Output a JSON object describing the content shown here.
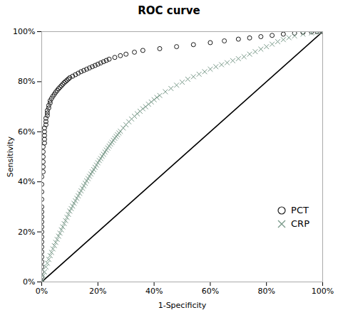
{
  "chart_data": {
    "type": "scatter",
    "title": "ROC curve",
    "xlabel": "1-Specificity",
    "ylabel": "Sensitivity",
    "xlim": [
      0,
      1
    ],
    "ylim": [
      0,
      1
    ],
    "xticks": [
      {
        "value": 0,
        "label": "0%"
      },
      {
        "value": 0.2,
        "label": "20%"
      },
      {
        "value": 0.4,
        "label": "40%"
      },
      {
        "value": 0.6,
        "label": "60%"
      },
      {
        "value": 0.8,
        "label": "80%"
      },
      {
        "value": 1.0,
        "label": "100%"
      }
    ],
    "yticks": [
      {
        "value": 0,
        "label": "0%"
      },
      {
        "value": 0.2,
        "label": "20%"
      },
      {
        "value": 0.4,
        "label": "40%"
      },
      {
        "value": 0.6,
        "label": "60%"
      },
      {
        "value": 0.8,
        "label": "80%"
      },
      {
        "value": 1.0,
        "label": "100%"
      }
    ],
    "grid": false,
    "legend": "lower right",
    "series": [
      {
        "name": "PCT",
        "color": "#1a1a1a",
        "marker": "circle",
        "x": [
          0.0,
          0.0,
          0.0,
          0.0,
          0.0,
          0.0,
          0.0,
          0.0,
          0.0,
          0.0,
          0.0,
          0.0,
          0.0,
          0.0,
          0.0,
          0.0,
          0.0,
          0.0,
          0.0,
          0.0,
          0.005,
          0.005,
          0.005,
          0.005,
          0.005,
          0.005,
          0.01,
          0.01,
          0.01,
          0.01,
          0.01,
          0.015,
          0.015,
          0.015,
          0.02,
          0.02,
          0.02,
          0.025,
          0.025,
          0.03,
          0.03,
          0.035,
          0.04,
          0.045,
          0.05,
          0.055,
          0.06,
          0.065,
          0.07,
          0.075,
          0.08,
          0.085,
          0.09,
          0.095,
          0.1,
          0.11,
          0.12,
          0.13,
          0.14,
          0.15,
          0.16,
          0.17,
          0.18,
          0.19,
          0.2,
          0.21,
          0.22,
          0.23,
          0.24,
          0.26,
          0.28,
          0.3,
          0.33,
          0.36,
          0.42,
          0.48,
          0.54,
          0.6,
          0.65,
          0.7,
          0.74,
          0.78,
          0.82,
          0.86,
          0.9,
          0.93,
          0.96,
          0.98,
          1.0
        ],
        "values": [
          0.0,
          0.02,
          0.04,
          0.06,
          0.08,
          0.1,
          0.12,
          0.14,
          0.16,
          0.18,
          0.2,
          0.22,
          0.24,
          0.26,
          0.28,
          0.3,
          0.33,
          0.36,
          0.39,
          0.42,
          0.44,
          0.46,
          0.48,
          0.5,
          0.52,
          0.54,
          0.555,
          0.57,
          0.585,
          0.6,
          0.615,
          0.628,
          0.641,
          0.654,
          0.665,
          0.675,
          0.685,
          0.695,
          0.705,
          0.715,
          0.724,
          0.733,
          0.742,
          0.75,
          0.758,
          0.765,
          0.772,
          0.778,
          0.784,
          0.79,
          0.796,
          0.801,
          0.806,
          0.811,
          0.816,
          0.822,
          0.828,
          0.834,
          0.84,
          0.845,
          0.85,
          0.855,
          0.86,
          0.865,
          0.87,
          0.875,
          0.88,
          0.885,
          0.89,
          0.897,
          0.904,
          0.91,
          0.918,
          0.925,
          0.932,
          0.94,
          0.948,
          0.956,
          0.963,
          0.97,
          0.975,
          0.98,
          0.985,
          0.99,
          0.994,
          0.997,
          0.999,
          1.0,
          1.0
        ]
      },
      {
        "name": "CRP",
        "color": "#7a9a8a",
        "marker": "x",
        "x": [
          0.0,
          0.0,
          0.005,
          0.01,
          0.015,
          0.02,
          0.025,
          0.03,
          0.035,
          0.04,
          0.045,
          0.05,
          0.055,
          0.06,
          0.065,
          0.07,
          0.075,
          0.08,
          0.085,
          0.09,
          0.095,
          0.1,
          0.105,
          0.11,
          0.115,
          0.12,
          0.125,
          0.13,
          0.135,
          0.14,
          0.145,
          0.15,
          0.155,
          0.16,
          0.165,
          0.17,
          0.175,
          0.18,
          0.185,
          0.19,
          0.195,
          0.2,
          0.205,
          0.21,
          0.215,
          0.22,
          0.225,
          0.23,
          0.235,
          0.24,
          0.245,
          0.25,
          0.255,
          0.26,
          0.265,
          0.27,
          0.275,
          0.28,
          0.29,
          0.3,
          0.31,
          0.32,
          0.33,
          0.34,
          0.35,
          0.36,
          0.37,
          0.38,
          0.39,
          0.4,
          0.41,
          0.42,
          0.44,
          0.46,
          0.48,
          0.5,
          0.52,
          0.54,
          0.56,
          0.58,
          0.6,
          0.62,
          0.64,
          0.66,
          0.68,
          0.7,
          0.72,
          0.74,
          0.76,
          0.78,
          0.8,
          0.82,
          0.84,
          0.86,
          0.88,
          0.9,
          0.93,
          0.96,
          0.98,
          1.0
        ],
        "values": [
          0.0,
          0.01,
          0.025,
          0.04,
          0.06,
          0.075,
          0.09,
          0.105,
          0.118,
          0.132,
          0.145,
          0.158,
          0.17,
          0.183,
          0.195,
          0.208,
          0.22,
          0.233,
          0.245,
          0.258,
          0.27,
          0.283,
          0.293,
          0.303,
          0.314,
          0.324,
          0.334,
          0.344,
          0.354,
          0.364,
          0.374,
          0.384,
          0.394,
          0.404,
          0.413,
          0.422,
          0.431,
          0.44,
          0.449,
          0.458,
          0.467,
          0.476,
          0.485,
          0.493,
          0.502,
          0.51,
          0.519,
          0.527,
          0.535,
          0.543,
          0.551,
          0.558,
          0.566,
          0.574,
          0.581,
          0.588,
          0.595,
          0.602,
          0.615,
          0.628,
          0.64,
          0.651,
          0.662,
          0.672,
          0.682,
          0.692,
          0.7,
          0.71,
          0.719,
          0.728,
          0.737,
          0.745,
          0.76,
          0.773,
          0.786,
          0.798,
          0.81,
          0.82,
          0.83,
          0.84,
          0.85,
          0.86,
          0.868,
          0.876,
          0.884,
          0.892,
          0.9,
          0.91,
          0.92,
          0.93,
          0.94,
          0.95,
          0.96,
          0.968,
          0.976,
          0.983,
          0.99,
          0.995,
          0.998,
          1.0
        ]
      }
    ],
    "reference_line": {
      "x": [
        0,
        1
      ],
      "values": [
        0,
        1
      ],
      "color": "#000000"
    }
  }
}
